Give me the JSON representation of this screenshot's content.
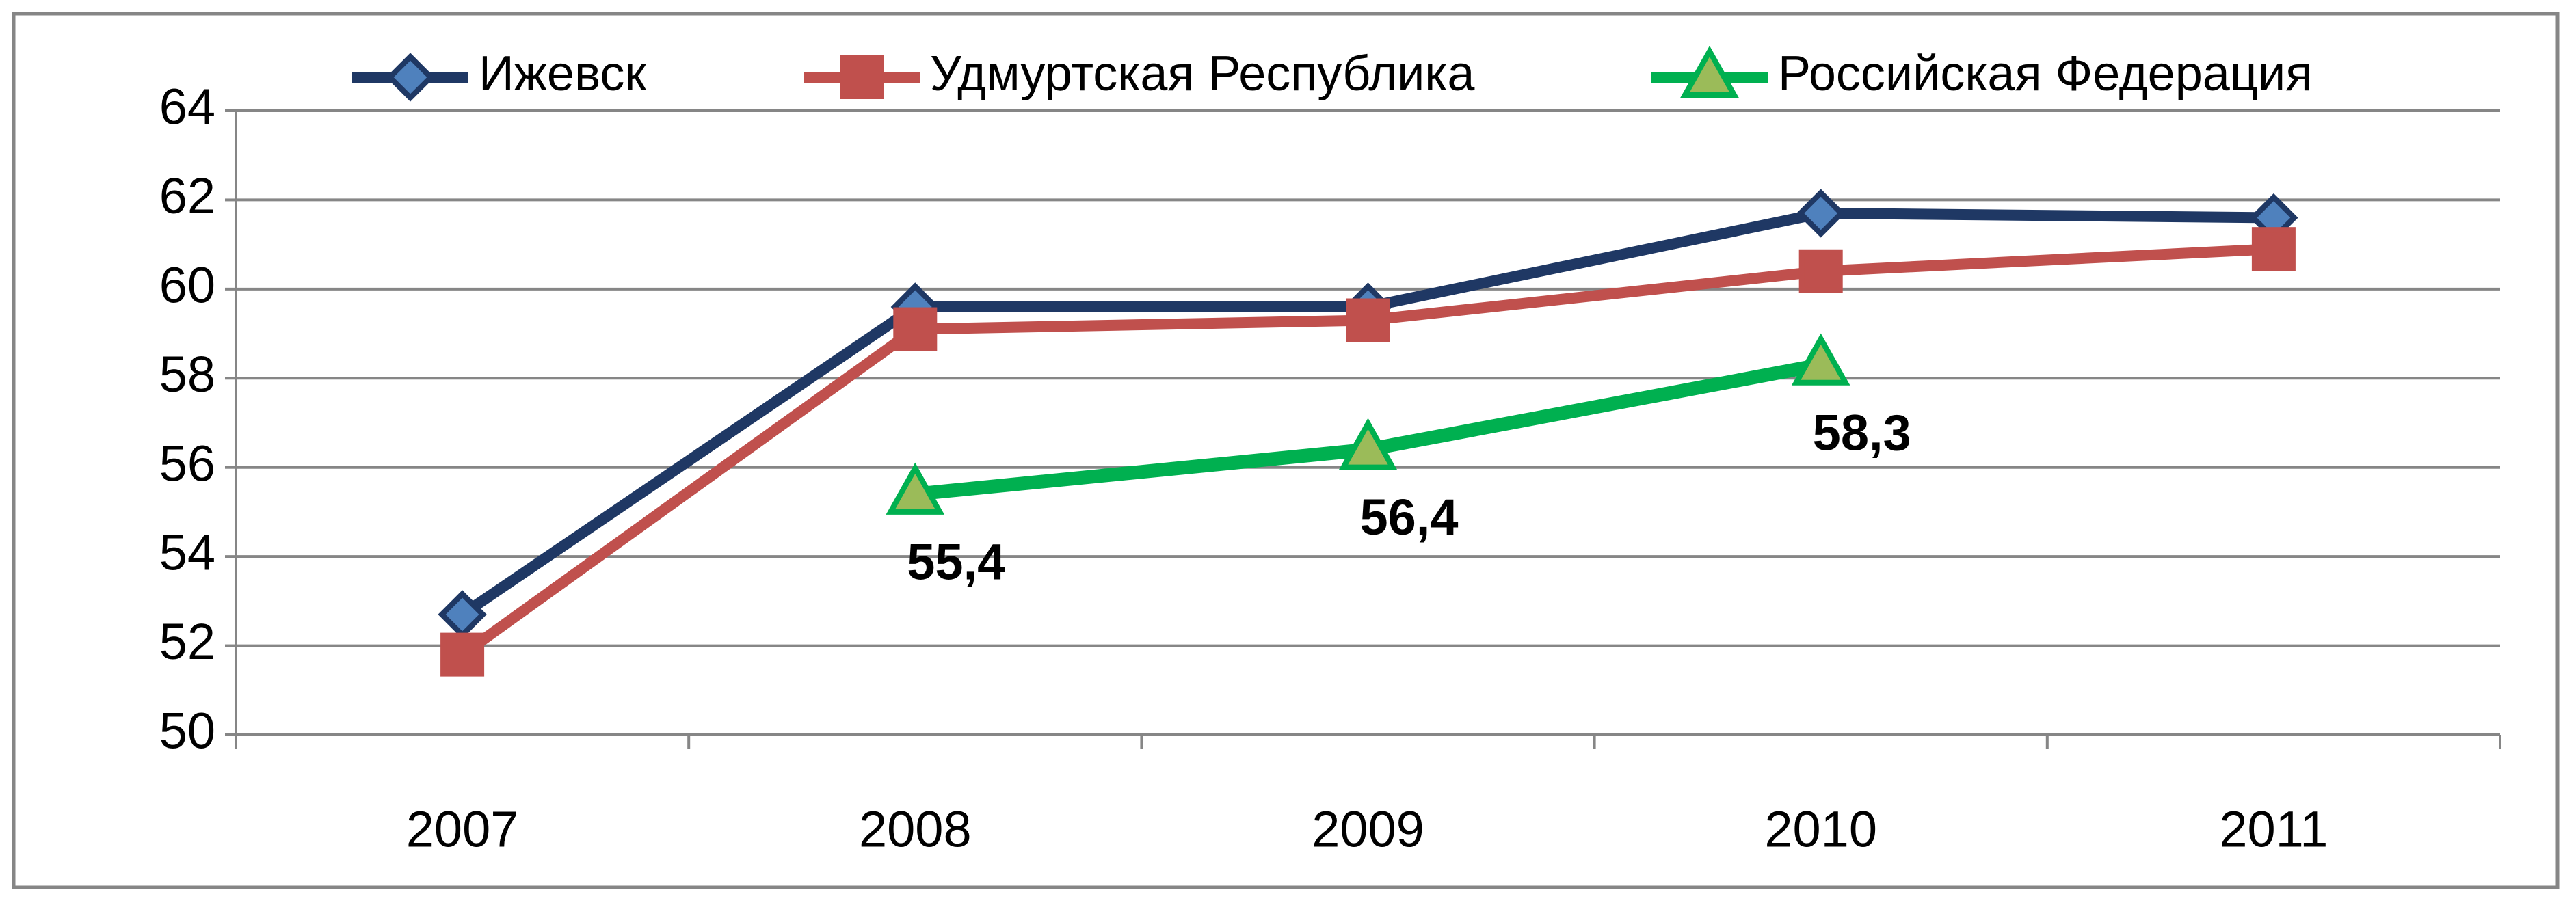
{
  "chart_data": {
    "type": "line",
    "categories": [
      "2007",
      "2008",
      "2009",
      "2010",
      "2011"
    ],
    "series": [
      {
        "name": "Ижевск",
        "color": "#1f3864",
        "marker_color": "#4f81bd",
        "marker": "diamond",
        "values": [
          52.7,
          59.6,
          59.6,
          61.7,
          61.6
        ]
      },
      {
        "name": "Удмуртская Республика",
        "color": "#c0504d",
        "marker_color": "#c0504d",
        "marker": "square",
        "values": [
          51.8,
          59.1,
          59.3,
          60.4,
          60.9
        ]
      },
      {
        "name": "Российская Федерация",
        "color": "#00b050",
        "marker_color": "#9bbb59",
        "marker": "triangle",
        "values": [
          null,
          55.4,
          56.4,
          58.3,
          null
        ],
        "value_labels": [
          null,
          "55,4",
          "56,4",
          "58,3",
          null
        ]
      }
    ],
    "ylim": [
      50,
      64
    ],
    "yticks": [
      50,
      52,
      54,
      56,
      58,
      60,
      62,
      64
    ],
    "grid": true,
    "legend": "top"
  }
}
